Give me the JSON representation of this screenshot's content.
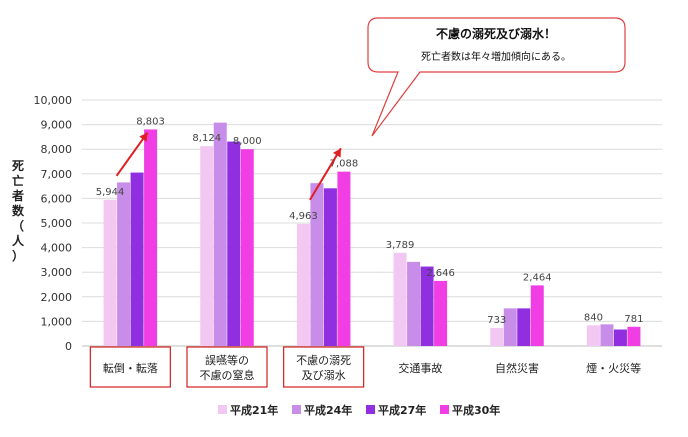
{
  "chart_data": {
    "type": "bar",
    "ylabel": "死亡者数（人）",
    "ylim": [
      0,
      10000
    ],
    "yticks": [
      0,
      1000,
      2000,
      3000,
      4000,
      5000,
      6000,
      7000,
      8000,
      9000,
      10000
    ],
    "ytick_labels": [
      "0",
      "1,000",
      "2,000",
      "3,000",
      "4,000",
      "5,000",
      "6,000",
      "7,000",
      "8,000",
      "9,000",
      "10,000"
    ],
    "grid": true,
    "legend_position": "bottom",
    "categories": [
      {
        "lines": [
          "転倒・転落"
        ],
        "boxed": true
      },
      {
        "lines": [
          "誤嚥等の",
          "不慮の窒息"
        ],
        "boxed": true
      },
      {
        "lines": [
          "不慮の溺死",
          "及び溺水"
        ],
        "boxed": true
      },
      {
        "lines": [
          "交通事故"
        ],
        "boxed": false
      },
      {
        "lines": [
          "自然災害"
        ],
        "boxed": false
      },
      {
        "lines": [
          "煙・火災等"
        ],
        "boxed": false
      }
    ],
    "series": [
      {
        "name": "平成21年",
        "color": "#f2c8f2",
        "values": [
          5944,
          8124,
          4963,
          3789,
          733,
          840
        ]
      },
      {
        "name": "平成24年",
        "color": "#c88de8",
        "values": [
          6650,
          9080,
          6620,
          3420,
          1530,
          880
        ]
      },
      {
        "name": "平成27年",
        "color": "#8f2fe0",
        "values": [
          7050,
          8310,
          6410,
          3230,
          1530,
          670
        ]
      },
      {
        "name": "平成30年",
        "color": "#f03ee4",
        "values": [
          8803,
          8000,
          7088,
          2646,
          2464,
          781
        ]
      }
    ],
    "data_labels": [
      {
        "series": 0,
        "category": 0,
        "text": "5,944"
      },
      {
        "series": 3,
        "category": 0,
        "text": "8,803"
      },
      {
        "series": 0,
        "category": 1,
        "text": "8,124"
      },
      {
        "series": 3,
        "category": 1,
        "text": "8,000"
      },
      {
        "series": 0,
        "category": 2,
        "text": "4,963"
      },
      {
        "series": 3,
        "category": 2,
        "text": "7,088"
      },
      {
        "series": 0,
        "category": 3,
        "text": "3,789"
      },
      {
        "series": 3,
        "category": 3,
        "text": "2,646"
      },
      {
        "series": 0,
        "category": 4,
        "text": "733"
      },
      {
        "series": 3,
        "category": 4,
        "text": "2,464"
      },
      {
        "series": 0,
        "category": 5,
        "text": "840"
      },
      {
        "series": 3,
        "category": 5,
        "text": "781"
      }
    ],
    "annotations": {
      "callout_title": "不慮の溺死及び溺水！",
      "callout_subtitle": "死亡者数は年々増加傾向にある。",
      "trend_arrows_on": [
        0,
        2
      ],
      "arrow_color": "#e02020"
    }
  }
}
